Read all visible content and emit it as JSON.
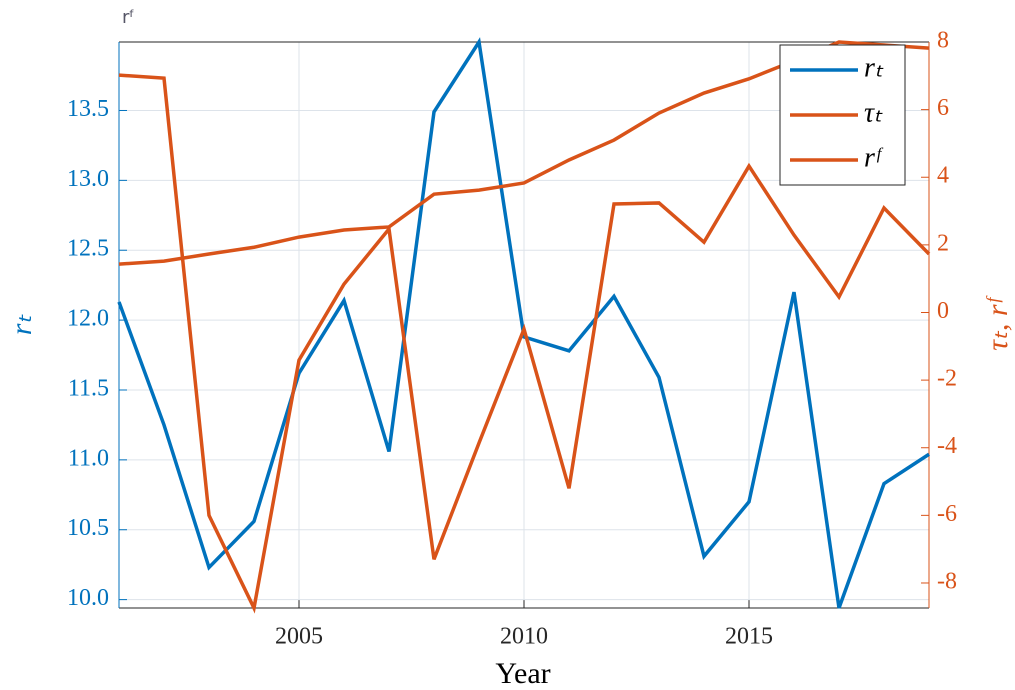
{
  "chart_data": {
    "type": "line",
    "title": "rᶠ",
    "x_label": "Year",
    "y_label": "rₜ",
    "y2_label": "τₜ, rᶠ",
    "x": [
      2001,
      2002,
      2003,
      2004,
      2005,
      2006,
      2007,
      2008,
      2009,
      2010,
      2011,
      2012,
      2013,
      2014,
      2015,
      2016,
      2017,
      2018,
      2019
    ],
    "series": [
      {
        "name": "rₜ",
        "color": "#0072BD",
        "axis": "y",
        "values": [
          12.13,
          11.25,
          10.23,
          10.56,
          11.62,
          12.14,
          11.06,
          13.49,
          13.99,
          11.88,
          11.78,
          12.17,
          11.59,
          10.31,
          10.7,
          12.2,
          9.94,
          10.83,
          11.04
        ]
      },
      {
        "name": "τₜ",
        "color": "#D95319",
        "axis": "y2",
        "values": [
          1.43,
          1.52,
          1.73,
          1.93,
          2.23,
          2.44,
          2.53,
          3.5,
          3.62,
          3.83,
          4.51,
          5.1,
          5.9,
          6.49,
          6.91,
          7.44,
          8.0,
          7.91,
          7.82
        ]
      },
      {
        "name": "rᶠ",
        "color": "#D95319",
        "axis": "y2",
        "values": [
          7.02,
          6.93,
          -6.0,
          -8.74,
          -1.41,
          0.84,
          2.47,
          -7.3,
          -3.86,
          -0.49,
          -5.2,
          3.21,
          3.24,
          2.08,
          4.33,
          2.29,
          0.46,
          3.09,
          1.73
        ]
      }
    ],
    "xlim": [
      2001,
      2019
    ],
    "xticks": [
      2005,
      2010,
      2015
    ],
    "ylim": [
      9.94,
      13.99
    ],
    "yticks": [
      {
        "value": 10,
        "label": "10.0"
      },
      10.5,
      {
        "value": 11,
        "label": "11.0"
      },
      11.5,
      {
        "value": 12,
        "label": "12.0"
      },
      12.5,
      {
        "value": 13,
        "label": "13.0"
      },
      13.5
    ],
    "y2lim": [
      -8.74,
      8
    ],
    "y2ticks": [
      -8,
      -6,
      -4,
      -2,
      0,
      2,
      4,
      6,
      8
    ],
    "grid": true,
    "legend": "top-right"
  }
}
